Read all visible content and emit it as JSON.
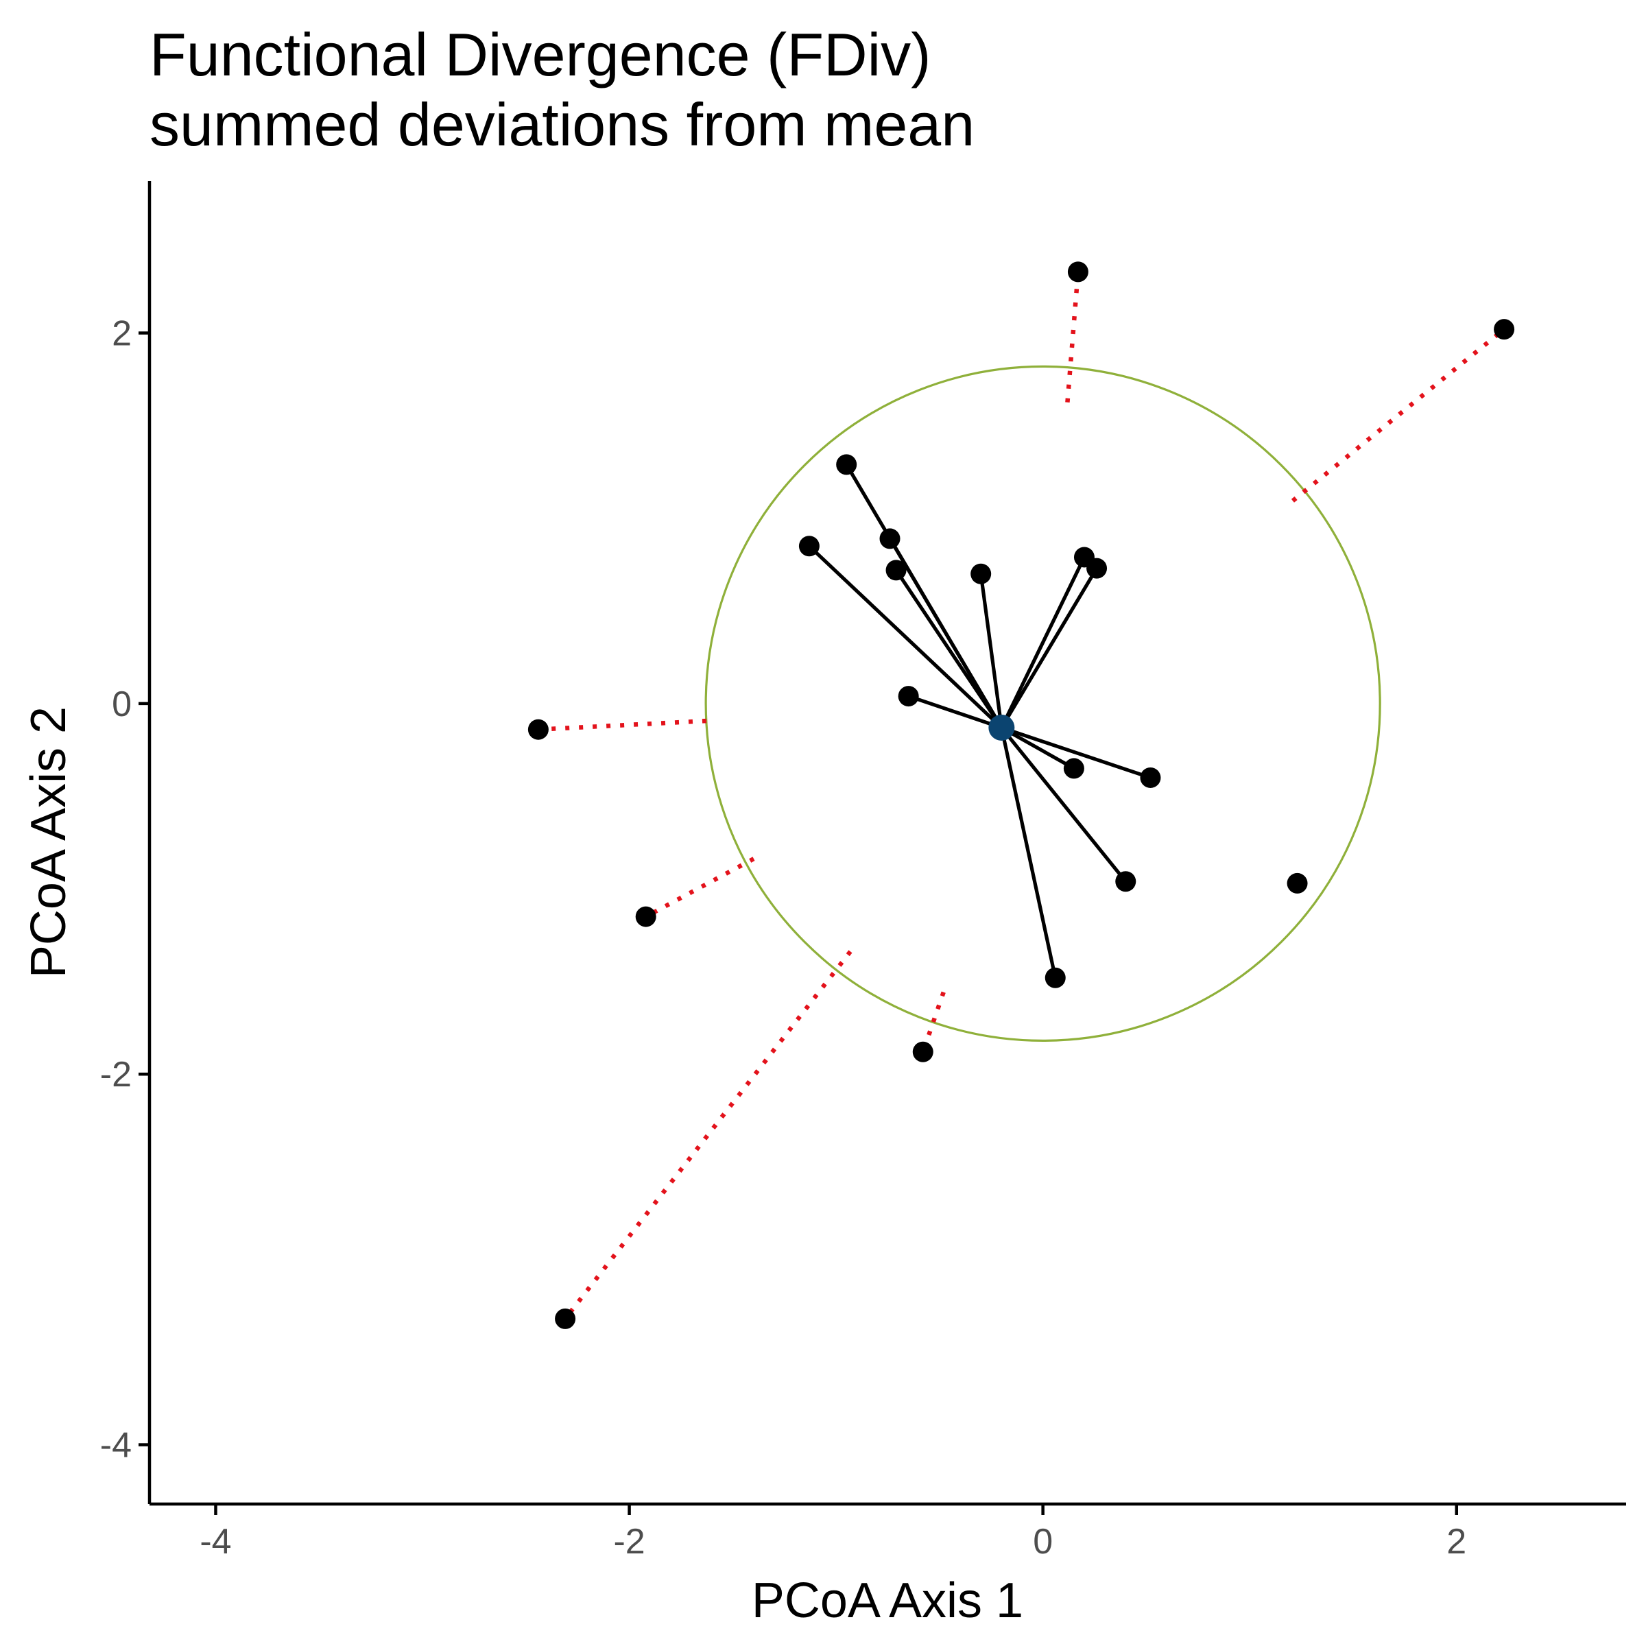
{
  "chart_data": {
    "type": "scatter",
    "title_line1": "Functional Divergence (FDiv)",
    "title_line2": "summed deviations from mean",
    "xlabel": "PCoA Axis 1",
    "ylabel": "PCoA Axis 2",
    "xlim": [
      -4.32,
      2.82
    ],
    "ylim": [
      -4.32,
      2.82
    ],
    "xticks": [
      -4,
      -2,
      0,
      2
    ],
    "yticks": [
      -4,
      -2,
      0,
      2
    ],
    "xtick_labels": [
      "-4",
      "-2",
      "0",
      "2"
    ],
    "ytick_labels": [
      "-4",
      "-2",
      "0",
      "2"
    ],
    "grid": false,
    "centroid": {
      "x": -0.2,
      "y": -0.13,
      "color": "#0b4470"
    },
    "circle": {
      "cx": 0.0,
      "cy": 0.0,
      "r": 1.63,
      "color": "#8fb03a"
    },
    "inside_points": [
      {
        "x": -0.95,
        "y": 1.29
      },
      {
        "x": -1.13,
        "y": 0.85
      },
      {
        "x": -0.74,
        "y": 0.89
      },
      {
        "x": -0.71,
        "y": 0.72
      },
      {
        "x": -0.3,
        "y": 0.7
      },
      {
        "x": 0.2,
        "y": 0.79
      },
      {
        "x": 0.26,
        "y": 0.73
      },
      {
        "x": -0.65,
        "y": 0.04
      },
      {
        "x": 0.15,
        "y": -0.35
      },
      {
        "x": 0.52,
        "y": -0.4
      },
      {
        "x": 0.4,
        "y": -0.96
      },
      {
        "x": 0.06,
        "y": -1.48
      }
    ],
    "outside_points": [
      {
        "x": 0.17,
        "y": 2.33
      },
      {
        "x": 2.23,
        "y": 2.02
      },
      {
        "x": -2.44,
        "y": -0.14
      },
      {
        "x": -1.92,
        "y": -1.15
      },
      {
        "x": -0.58,
        "y": -1.88
      },
      {
        "x": -2.31,
        "y": -3.32
      }
    ],
    "boundary_point": {
      "x": 1.23,
      "y": -0.97
    },
    "point_color": "#000000",
    "deviation_line_color": "#000000",
    "outside_line_color": "#e3121b"
  }
}
